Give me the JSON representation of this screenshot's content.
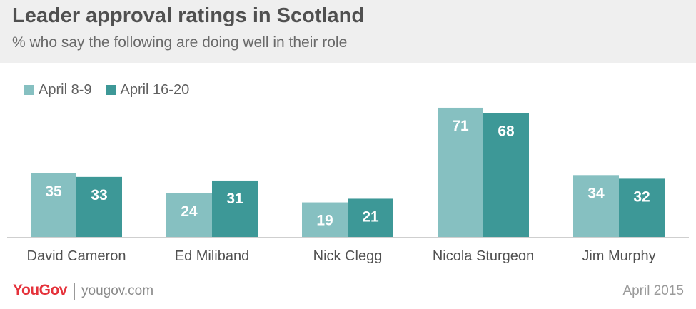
{
  "chart_data": {
    "type": "bar",
    "title": "Leader approval ratings in Scotland",
    "subtitle": "% who say the following are doing well in their role",
    "categories": [
      "David Cameron",
      "Ed Miliband",
      "Nick Clegg",
      "Nicola Sturgeon",
      "Jim Murphy"
    ],
    "series": [
      {
        "name": "April 8-9",
        "values": [
          35,
          24,
          19,
          71,
          34
        ],
        "color": "#86c0c1"
      },
      {
        "name": "April 16-20",
        "values": [
          33,
          31,
          21,
          68,
          32
        ],
        "color": "#3d9897"
      }
    ],
    "ylim": [
      0,
      80
    ],
    "grid": false,
    "legend_position": "top-left"
  },
  "footer": {
    "brand": "YouGov",
    "url": "yougov.com",
    "date": "April 2015"
  }
}
